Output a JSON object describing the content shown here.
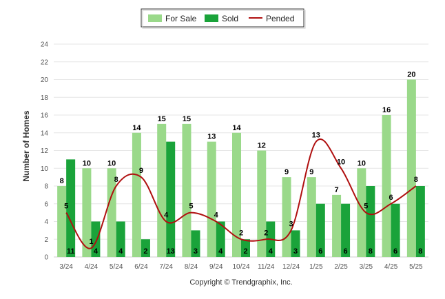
{
  "chart_data": {
    "type": "bar",
    "ylabel": "Number of Homes",
    "ylim": [
      0,
      24
    ],
    "yticks": [
      0,
      2,
      4,
      6,
      8,
      10,
      12,
      14,
      16,
      18,
      20,
      22,
      24
    ],
    "categories": [
      "3/24",
      "4/24",
      "5/24",
      "6/24",
      "7/24",
      "8/24",
      "9/24",
      "10/24",
      "11/24",
      "12/24",
      "1/25",
      "2/25",
      "3/25",
      "4/25",
      "5/25"
    ],
    "series": [
      {
        "name": "For Sale",
        "type": "bar",
        "color": "#9ad98a",
        "values": [
          8,
          10,
          10,
          14,
          15,
          15,
          13,
          14,
          12,
          9,
          9,
          7,
          10,
          16,
          20
        ]
      },
      {
        "name": "Sold",
        "type": "bar",
        "color": "#1aa33a",
        "values": [
          11,
          4,
          4,
          2,
          13,
          3,
          4,
          2,
          4,
          3,
          6,
          6,
          8,
          6,
          8
        ]
      },
      {
        "name": "Pended",
        "type": "line",
        "color": "#b01010",
        "values": [
          5,
          1,
          8,
          9,
          4,
          5,
          4,
          2,
          2,
          3,
          13,
          10,
          5,
          6,
          8
        ]
      }
    ],
    "legend_position": "top-center",
    "grid": true,
    "footer": "Copyright © Trendgraphix, Inc."
  }
}
